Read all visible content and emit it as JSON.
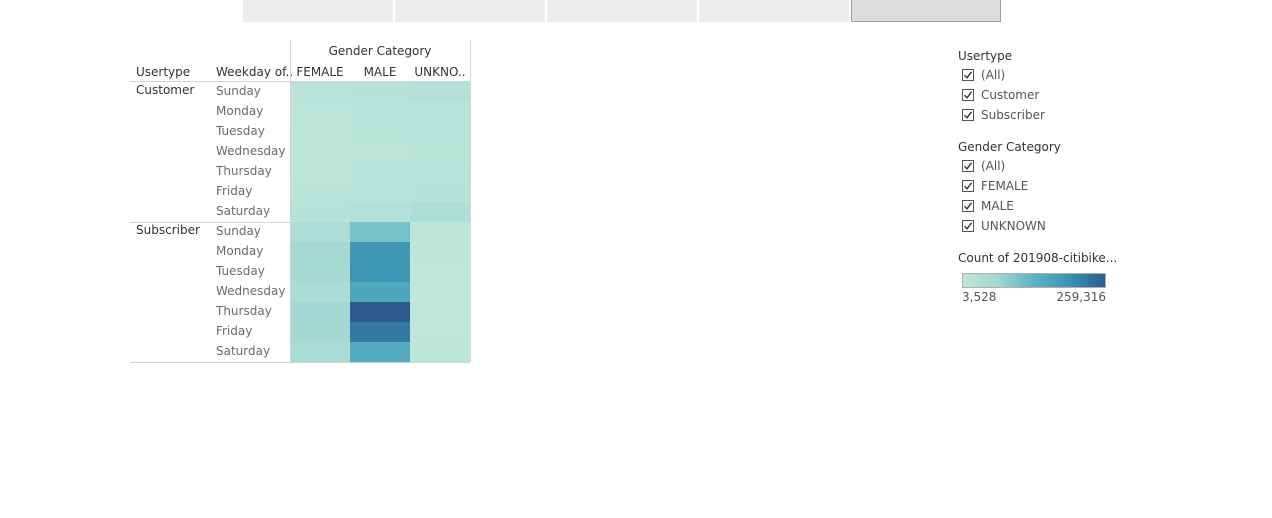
{
  "tabs": [
    {
      "label": "",
      "active": false
    },
    {
      "label": "",
      "active": false
    },
    {
      "label": "",
      "active": false
    },
    {
      "label": "",
      "active": false
    },
    {
      "label": "",
      "active": true
    }
  ],
  "chart_data": {
    "type": "heatmap",
    "column_group_label": "Gender Category",
    "row_headers": [
      "Usertype",
      "Weekday of.."
    ],
    "columns": [
      "FEMALE",
      "MALE",
      "UNKNO.."
    ],
    "row_groups": [
      {
        "usertype": "Customer",
        "rows": [
          {
            "day": "Sunday",
            "values": [
              14000,
              18000,
              26000
            ]
          },
          {
            "day": "Monday",
            "values": [
              9000,
              13000,
              14000
            ]
          },
          {
            "day": "Tuesday",
            "values": [
              8000,
              12000,
              13000
            ]
          },
          {
            "day": "Wednesday",
            "values": [
              6000,
              10000,
              11000
            ]
          },
          {
            "day": "Thursday",
            "values": [
              8000,
              13000,
              15000
            ]
          },
          {
            "day": "Friday",
            "values": [
              11000,
              16000,
              20000
            ]
          },
          {
            "day": "Saturday",
            "values": [
              20000,
              26000,
              36000
            ]
          }
        ]
      },
      {
        "usertype": "Subscriber",
        "rows": [
          {
            "day": "Sunday",
            "values": [
              38000,
              105000,
              6000
            ]
          },
          {
            "day": "Monday",
            "values": [
              55000,
              185000,
              6000
            ]
          },
          {
            "day": "Tuesday",
            "values": [
              53000,
              190000,
              5000
            ]
          },
          {
            "day": "Wednesday",
            "values": [
              45000,
              155000,
              5000
            ]
          },
          {
            "day": "Thursday",
            "values": [
              62000,
              259316,
              5500
            ]
          },
          {
            "day": "Friday",
            "values": [
              58000,
              225000,
              5500
            ]
          },
          {
            "day": "Saturday",
            "values": [
              48000,
              145000,
              5800
            ]
          }
        ]
      }
    ],
    "color_scale": {
      "min": 3528,
      "max": 259316,
      "stops": [
        "#bfe6da",
        "#a0d6d2",
        "#5bb2c4",
        "#3a93b3",
        "#2c5a8c"
      ]
    }
  },
  "filters": [
    {
      "title": "Usertype",
      "items": [
        {
          "label": "(All)",
          "checked": true
        },
        {
          "label": "Customer",
          "checked": true
        },
        {
          "label": "Subscriber",
          "checked": true
        }
      ]
    },
    {
      "title": "Gender Category",
      "items": [
        {
          "label": "(All)",
          "checked": true
        },
        {
          "label": "FEMALE",
          "checked": true
        },
        {
          "label": "MALE",
          "checked": true
        },
        {
          "label": "UNKNOWN",
          "checked": true
        }
      ]
    }
  ],
  "legend": {
    "title": "Count of 201908-citibike...",
    "min_label": "3,528",
    "max_label": "259,316"
  }
}
